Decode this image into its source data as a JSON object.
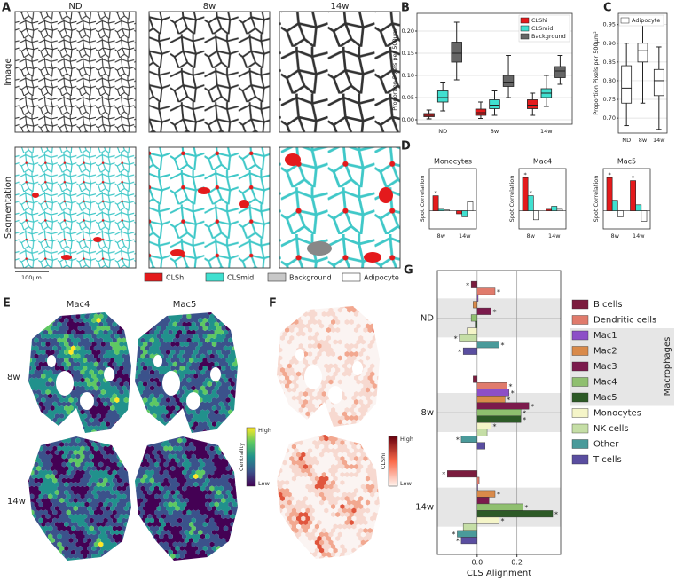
{
  "panel_letters": [
    "A",
    "B",
    "C",
    "D",
    "E",
    "F",
    "G"
  ],
  "panel_a": {
    "columns": [
      "ND",
      "8w",
      "14w"
    ],
    "rows": [
      "Image",
      "Segmentation"
    ],
    "scale_bar": "100μm",
    "legend": [
      {
        "name": "CLShi",
        "color": "#e41a1c"
      },
      {
        "name": "CLSmid",
        "color": "#40e0d0"
      },
      {
        "name": "Background",
        "color": "#c8c8c8"
      },
      {
        "name": "Adipocyte",
        "color": "#ffffff"
      }
    ]
  },
  "panel_e": {
    "columns": [
      "Mac4",
      "Mac5"
    ],
    "rows": [
      "8w",
      "14w"
    ],
    "colorbar": {
      "high": "High",
      "low": "Low",
      "label": "Centrality"
    }
  },
  "panel_f": {
    "colorbar": {
      "high": "High",
      "low": "Low",
      "label": "CLShi"
    }
  },
  "chart_data": [
    {
      "type": "box",
      "categories": [
        "ND",
        "8w",
        "14w"
      ],
      "ylabel": "Proportion Pixels per 500μm²",
      "ylim": [
        -0.01,
        0.24
      ],
      "yticks": [
        {
          "value": 0,
          "label": "0.00"
        },
        {
          "value": 0.05,
          "label": "0.05"
        },
        {
          "value": 0.1,
          "label": "0.10"
        },
        {
          "value": 0.15,
          "label": "0.15"
        },
        {
          "value": 0.2,
          "label": "0.20"
        }
      ],
      "grid": true,
      "legend": "upper right",
      "series": [
        {
          "name": "CLShi",
          "color": "#e41a1c",
          "values": [
            [
              0.002,
              0.007,
              0.01,
              0.014,
              0.022
            ],
            [
              0.003,
              0.01,
              0.016,
              0.024,
              0.04
            ],
            [
              0.01,
              0.025,
              0.033,
              0.045,
              0.06
            ]
          ]
        },
        {
          "name": "CLSmid",
          "color": "#40e0d0",
          "values": [
            [
              0.02,
              0.04,
              0.05,
              0.065,
              0.085
            ],
            [
              0.01,
              0.025,
              0.033,
              0.045,
              0.065
            ],
            [
              0.03,
              0.05,
              0.06,
              0.07,
              0.1
            ]
          ]
        },
        {
          "name": "Background",
          "color": "#666666",
          "values": [
            [
              0.09,
              0.13,
              0.15,
              0.175,
              0.22
            ],
            [
              0.05,
              0.075,
              0.085,
              0.1,
              0.145
            ],
            [
              0.08,
              0.095,
              0.11,
              0.12,
              0.145
            ]
          ]
        }
      ]
    },
    {
      "type": "box",
      "categories": [
        "ND",
        "8w",
        "14w"
      ],
      "ylabel": "Proportion Pixels per 500μm²",
      "ylim": [
        0.66,
        0.98
      ],
      "yticks": [
        {
          "value": 0.7,
          "label": "0.70"
        },
        0.75,
        {
          "value": 0.8,
          "label": "0.80"
        },
        0.85,
        {
          "value": 0.9,
          "label": "0.90"
        },
        0.95
      ],
      "grid": true,
      "legend": "upper left",
      "series": [
        {
          "name": "Adipocyte",
          "color": "#ffffff",
          "values": [
            [
              0.68,
              0.74,
              0.78,
              0.84,
              0.9
            ],
            [
              0.74,
              0.85,
              0.88,
              0.9,
              0.97
            ],
            [
              0.67,
              0.76,
              0.8,
              0.83,
              0.89
            ]
          ]
        }
      ]
    },
    {
      "type": "bar",
      "title": "Monocytes",
      "categories": [
        "8w",
        "14w"
      ],
      "ylabel": "Spot Correlation",
      "ylim": [
        -0.06,
        0.14
      ],
      "series": [
        {
          "color": "#e41a1c",
          "values": [
            0.05,
            -0.01
          ],
          "significance": [
            "*",
            null
          ]
        },
        {
          "color": "#40e0d0",
          "values": [
            0.005,
            -0.02
          ],
          "significance": [
            null,
            null
          ]
        },
        {
          "color": "#ffffff",
          "values": [
            0.003,
            0.03
          ],
          "significance": [
            null,
            null
          ]
        }
      ]
    },
    {
      "type": "bar",
      "title": "Mac4",
      "categories": [
        "8w",
        "14w"
      ],
      "ylabel": "Spot Correlation",
      "ylim": [
        -0.06,
        0.14
      ],
      "series": [
        {
          "color": "#e41a1c",
          "values": [
            0.11,
            0.005
          ],
          "significance": [
            "*",
            null
          ]
        },
        {
          "color": "#40e0d0",
          "values": [
            0.05,
            0.015
          ],
          "significance": [
            "*",
            null
          ]
        },
        {
          "color": "#ffffff",
          "values": [
            -0.03,
            0.005
          ],
          "significance": [
            null,
            null
          ]
        }
      ]
    },
    {
      "type": "bar",
      "title": "Mac5",
      "categories": [
        "8w",
        "14w"
      ],
      "ylabel": "Spot Correlation",
      "ylim": [
        -0.06,
        0.14
      ],
      "series": [
        {
          "color": "#e41a1c",
          "values": [
            0.11,
            0.1
          ],
          "significance": [
            "*",
            "*"
          ]
        },
        {
          "color": "#40e0d0",
          "values": [
            0.035,
            0.02
          ],
          "significance": [
            null,
            null
          ]
        },
        {
          "color": "#ffffff",
          "values": [
            -0.02,
            -0.035
          ],
          "significance": [
            null,
            null
          ]
        }
      ]
    },
    {
      "type": "barh",
      "categories": [
        "ND",
        "8w",
        "14w"
      ],
      "xlabel": "CLS Alignment",
      "xlim": [
        -0.2,
        0.42
      ],
      "xticks": [
        {
          "value": 0,
          "label": "0.0"
        },
        0.2
      ],
      "grid": true,
      "legend": "right",
      "legend_group_label": "Macrophages",
      "series": [
        {
          "name": "B cells",
          "color": "#7b1c3e",
          "values": [
            -0.03,
            -0.02,
            -0.15
          ],
          "significance": [
            "*",
            null,
            "*"
          ]
        },
        {
          "name": "Dendritic cells",
          "color": "#e07b6c",
          "values": [
            0.09,
            0.15,
            0.01
          ],
          "significance": [
            "*",
            "*",
            null
          ]
        },
        {
          "name": "Mac1",
          "color": "#8d4fc7",
          "values": [
            0.005,
            0.16,
            0.003
          ],
          "significance": [
            null,
            "*",
            null
          ]
        },
        {
          "name": "Mac2",
          "color": "#d98a4a",
          "values": [
            -0.02,
            0.14,
            0.09
          ],
          "significance": [
            null,
            "*",
            "*"
          ]
        },
        {
          "name": "Mac3",
          "color": "#7b1a4c",
          "values": [
            0.07,
            0.26,
            0.06
          ],
          "significance": [
            "*",
            "*",
            null
          ]
        },
        {
          "name": "Mac4",
          "color": "#8fbf6f",
          "values": [
            -0.03,
            0.22,
            0.23
          ],
          "significance": [
            null,
            "*",
            "*"
          ]
        },
        {
          "name": "Mac5",
          "color": "#2d5a27",
          "values": [
            -0.01,
            0.22,
            0.38
          ],
          "significance": [
            null,
            "*",
            "*"
          ]
        },
        {
          "name": "Monocytes",
          "color": "#f5f5c8",
          "values": [
            -0.05,
            0.07,
            0.11
          ],
          "significance": [
            null,
            "*",
            "*"
          ]
        },
        {
          "name": "NK cells",
          "color": "#c5dea6",
          "values": [
            -0.09,
            0.05,
            -0.07
          ],
          "significance": [
            "*",
            null,
            null
          ]
        },
        {
          "name": "Other",
          "color": "#4a9a9a",
          "values": [
            0.11,
            -0.08,
            -0.1
          ],
          "significance": [
            "*",
            "*",
            "*"
          ]
        },
        {
          "name": "T cells",
          "color": "#5a4ea0",
          "values": [
            -0.07,
            0.04,
            -0.08
          ],
          "significance": [
            "*",
            null,
            "*"
          ]
        }
      ]
    }
  ]
}
